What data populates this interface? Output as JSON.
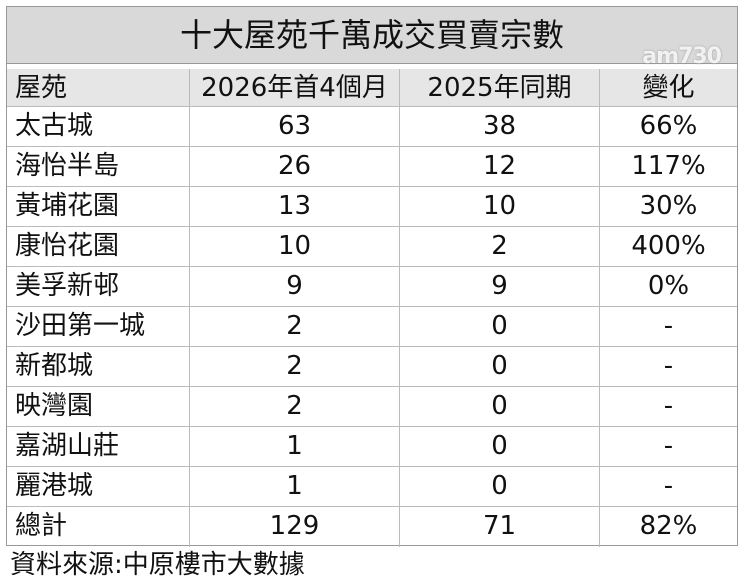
{
  "header": {
    "title": "十大屋苑千萬成交買賣宗數",
    "watermark": "am730"
  },
  "table": {
    "columns": [
      "屋苑",
      "2026年首4個月",
      "2025年同期",
      "變化"
    ],
    "rows": [
      [
        "太古城",
        "63",
        "38",
        "66%"
      ],
      [
        "海怡半島",
        "26",
        "12",
        "117%"
      ],
      [
        "黃埔花園",
        "13",
        "10",
        "30%"
      ],
      [
        "康怡花園",
        "10",
        "2",
        "400%"
      ],
      [
        "美孚新邨",
        "9",
        "9",
        "0%"
      ],
      [
        "沙田第一城",
        "2",
        "0",
        "-"
      ],
      [
        "新都城",
        "2",
        "0",
        "-"
      ],
      [
        "映灣園",
        "2",
        "0",
        "-"
      ],
      [
        "嘉湖山莊",
        "1",
        "0",
        "-"
      ],
      [
        "麗港城",
        "1",
        "0",
        "-"
      ],
      [
        "總計",
        "129",
        "71",
        "82%"
      ]
    ]
  },
  "footer": {
    "source": "資料來源:中原樓市大數據"
  }
}
